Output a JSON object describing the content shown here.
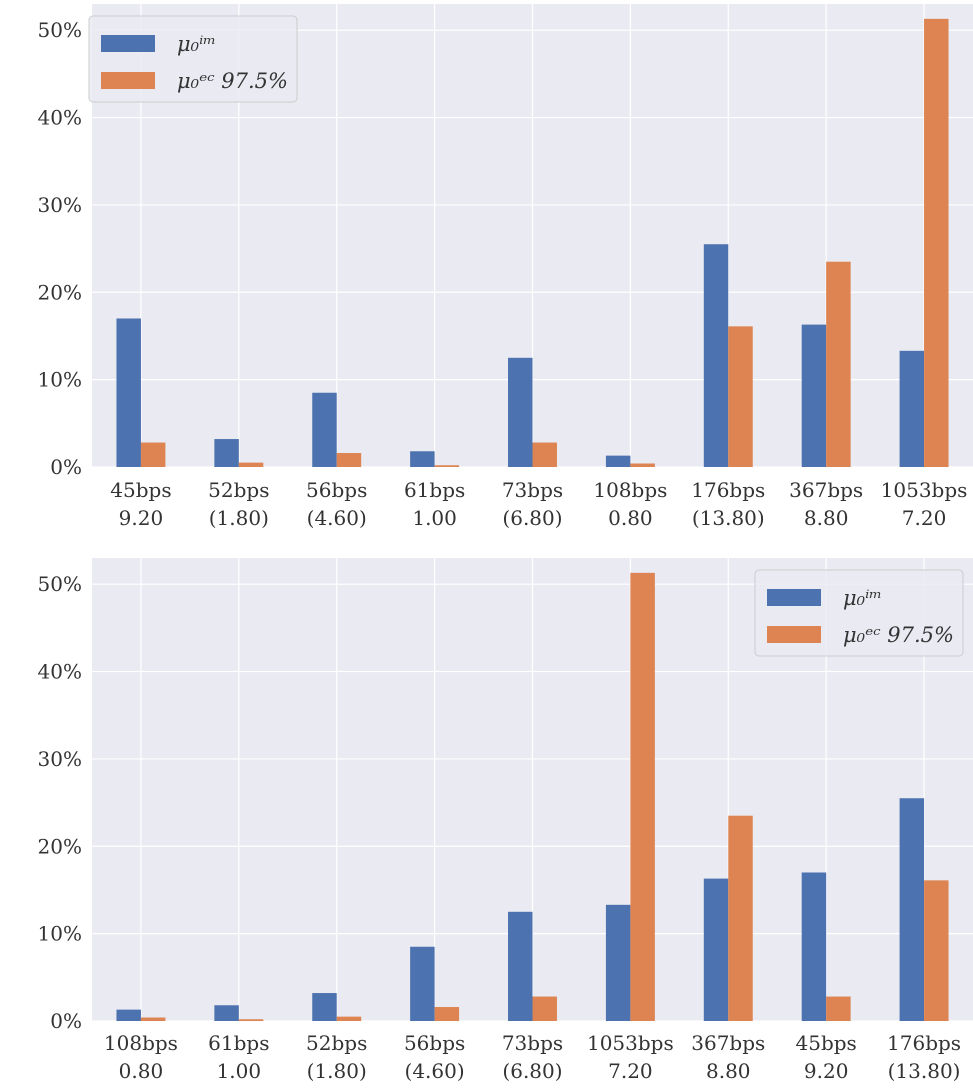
{
  "palette": {
    "panel_bg": "#eaeaf2",
    "grid": "#ffffff",
    "series_im": "#4c72b0",
    "series_ec": "#dd8452",
    "text": "#333333"
  },
  "legend_labels": {
    "im": "μ₀ⁱᵐ",
    "ec": "μ₀ᵉᶜ 97.5%"
  },
  "chart_data": [
    {
      "type": "bar",
      "grid": true,
      "legend_position": "upper-left",
      "ylim": [
        0,
        53
      ],
      "yticks": [
        0,
        10,
        20,
        30,
        40,
        50
      ],
      "ytick_labels": [
        "0%",
        "10%",
        "20%",
        "30%",
        "40%",
        "50%"
      ],
      "categories": [
        "45bps",
        "52bps",
        "56bps",
        "61bps",
        "73bps",
        "108bps",
        "176bps",
        "367bps",
        "1053bps"
      ],
      "category_sublabels": [
        "9.20",
        "(1.80)",
        "(4.60)",
        "1.00",
        "(6.80)",
        "0.80",
        "(13.80)",
        "8.80",
        "7.20"
      ],
      "series": [
        {
          "name": "μ₀ⁱᵐ",
          "values": [
            17.0,
            3.2,
            8.5,
            1.8,
            12.5,
            1.3,
            25.5,
            16.3,
            13.3
          ]
        },
        {
          "name": "μ₀ᵉᶜ 97.5%",
          "values": [
            2.8,
            0.5,
            1.6,
            0.2,
            2.8,
            0.4,
            16.1,
            23.5,
            51.3
          ]
        }
      ]
    },
    {
      "type": "bar",
      "grid": true,
      "legend_position": "upper-right",
      "ylim": [
        0,
        53
      ],
      "yticks": [
        0,
        10,
        20,
        30,
        40,
        50
      ],
      "ytick_labels": [
        "0%",
        "10%",
        "20%",
        "30%",
        "40%",
        "50%"
      ],
      "categories": [
        "108bps",
        "61bps",
        "52bps",
        "56bps",
        "73bps",
        "1053bps",
        "367bps",
        "45bps",
        "176bps"
      ],
      "category_sublabels": [
        "0.80",
        "1.00",
        "(1.80)",
        "(4.60)",
        "(6.80)",
        "7.20",
        "8.80",
        "9.20",
        "(13.80)"
      ],
      "series": [
        {
          "name": "μ₀ⁱᵐ",
          "values": [
            1.3,
            1.8,
            3.2,
            8.5,
            12.5,
            13.3,
            16.3,
            17.0,
            25.5
          ]
        },
        {
          "name": "μ₀ᵉᶜ 97.5%",
          "values": [
            0.4,
            0.2,
            0.5,
            1.6,
            2.8,
            51.3,
            23.5,
            2.8,
            16.1
          ]
        }
      ]
    }
  ]
}
